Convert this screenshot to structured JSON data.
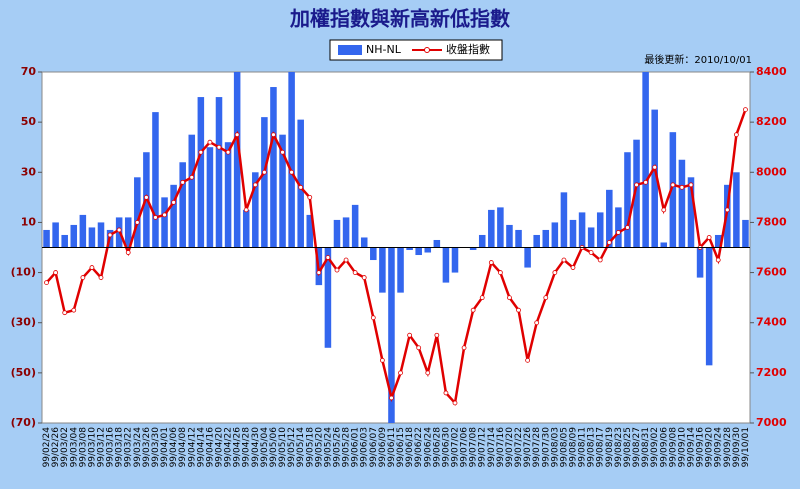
{
  "chart_data": {
    "type": "bar-line",
    "title": "加權指數與新高新低指數",
    "annotation": "最後更新：2010/10/01",
    "categories": [
      "99/02/24",
      "99/02/26",
      "99/03/02",
      "99/03/04",
      "99/03/08",
      "99/03/10",
      "99/03/12",
      "99/03/16",
      "99/03/18",
      "99/03/22",
      "99/03/24",
      "99/03/26",
      "99/03/30",
      "99/04/01",
      "99/04/06",
      "99/04/08",
      "99/04/12",
      "99/04/14",
      "99/04/16",
      "99/04/20",
      "99/04/22",
      "99/04/26",
      "99/04/28",
      "99/04/30",
      "99/05/04",
      "99/05/06",
      "99/05/10",
      "99/05/12",
      "99/05/14",
      "99/05/18",
      "99/05/20",
      "99/05/24",
      "99/05/26",
      "99/05/28",
      "99/06/01",
      "99/06/03",
      "99/06/07",
      "99/06/09",
      "99/06/11",
      "99/06/15",
      "99/06/18",
      "99/06/22",
      "99/06/24",
      "99/06/28",
      "99/06/30",
      "99/07/02",
      "99/07/06",
      "99/07/08",
      "99/07/12",
      "99/07/14",
      "99/07/16",
      "99/07/20",
      "99/07/22",
      "99/07/26",
      "99/07/28",
      "99/07/30",
      "99/08/03",
      "99/08/05",
      "99/08/09",
      "99/08/11",
      "99/08/13",
      "99/08/17",
      "99/08/19",
      "99/08/23",
      "99/08/25",
      "99/08/27",
      "99/08/31",
      "99/09/02",
      "99/09/06",
      "99/09/08",
      "99/09/10",
      "99/09/14",
      "99/09/16",
      "99/09/20",
      "99/09/24",
      "99/09/28",
      "99/09/30",
      "99/10/01"
    ],
    "series": [
      {
        "name": "NH-NL",
        "color": "#3366ee",
        "axis": "y",
        "values": [
          7,
          10,
          5,
          9,
          13,
          8,
          10,
          7,
          12,
          12,
          28,
          38,
          54,
          20,
          25,
          34,
          45,
          60,
          40,
          60,
          42,
          70,
          15,
          30,
          52,
          64,
          45,
          70,
          51,
          13,
          -15,
          -40,
          11,
          12,
          17,
          4,
          -5,
          -18,
          -70,
          -18,
          -1,
          -3,
          -2,
          3,
          -14,
          -10,
          0,
          -1,
          5,
          15,
          16,
          9,
          7,
          -8,
          5,
          7,
          10,
          22,
          11,
          14,
          8,
          14,
          23,
          16,
          38,
          43,
          70,
          55,
          2,
          46,
          35,
          28,
          -12,
          -47,
          5,
          25,
          30,
          11
        ]
      },
      {
        "name": "收盤指數",
        "color": "#e00000",
        "axis": "y2",
        "values": [
          7560,
          7600,
          7440,
          7450,
          7580,
          7620,
          7580,
          7750,
          7770,
          7680,
          7800,
          7900,
          7820,
          7830,
          7880,
          7960,
          7980,
          8080,
          8120,
          8100,
          8080,
          8150,
          7850,
          7950,
          8000,
          8150,
          8080,
          8000,
          7940,
          7900,
          7600,
          7660,
          7610,
          7650,
          7600,
          7580,
          7420,
          7250,
          7100,
          7200,
          7350,
          7300,
          7200,
          7350,
          7120,
          7080,
          7300,
          7450,
          7500,
          7640,
          7600,
          7500,
          7450,
          7250,
          7400,
          7500,
          7600,
          7650,
          7620,
          7700,
          7680,
          7650,
          7720,
          7760,
          7780,
          7950,
          7960,
          8020,
          7850,
          7950,
          7940,
          7950,
          7700,
          7740,
          7650,
          7850,
          8150,
          8250
        ]
      }
    ],
    "ylim": [
      -70,
      70
    ],
    "yticks": [
      {
        "value": -70,
        "label": "(70)"
      },
      {
        "value": -50,
        "label": "(50)"
      },
      {
        "value": -30,
        "label": "(30)"
      },
      {
        "value": -10,
        "label": "(10)"
      },
      10,
      30,
      50,
      70
    ],
    "y2lim": [
      7000,
      8400
    ],
    "y2ticks": [
      7000,
      7200,
      7400,
      7600,
      7800,
      8000,
      8200,
      8400
    ]
  }
}
